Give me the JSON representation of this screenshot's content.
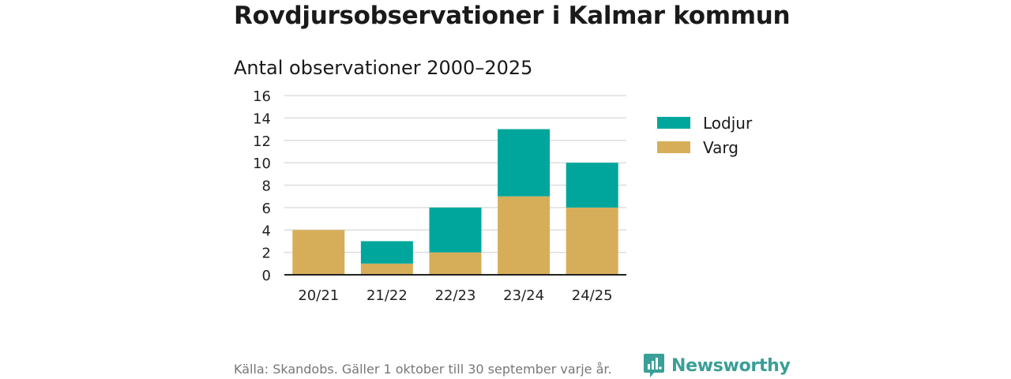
{
  "title": "Rovdjursobservationer i Kalmar kommun",
  "subtitle": "Antal observationer 2000–2025",
  "source": "Källa: Skandobs. Gäller 1 oktober till 30 september varje år.",
  "brand": {
    "name": "Newsworthy",
    "icon": "newsworthy-logo-icon",
    "color": "#3a9f96"
  },
  "chart_data": {
    "type": "bar",
    "stacked": true,
    "categories": [
      "20/21",
      "21/22",
      "22/23",
      "23/24",
      "24/25"
    ],
    "series": [
      {
        "name": "Varg",
        "values": [
          4,
          1,
          2,
          7,
          6
        ],
        "color": "#d6ae5a"
      },
      {
        "name": "Lodjur",
        "values": [
          0,
          2,
          4,
          6,
          4
        ],
        "color": "#00a69c"
      }
    ],
    "ylim": [
      0,
      16
    ],
    "yticks": [
      "0",
      "2",
      "4",
      "6",
      "8",
      "10",
      "12",
      "14",
      "16"
    ],
    "grid": true,
    "legend": "right",
    "title": "Antal observationer 2000–2025",
    "xlabel": "",
    "ylabel": ""
  },
  "legend": {
    "items": [
      {
        "label": "Lodjur",
        "color": "#00a69c"
      },
      {
        "label": "Varg",
        "color": "#d6ae5a"
      }
    ]
  }
}
